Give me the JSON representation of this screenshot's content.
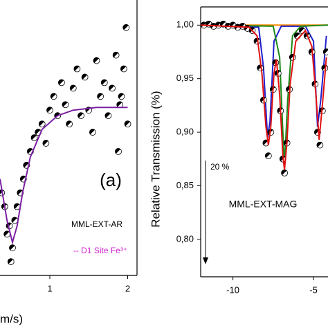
{
  "chart_data": [
    {
      "type": "scatter",
      "x_label": "m/s)",
      "annotations": [
        "(a)",
        "MML-EXT-AR",
        "-- D1 Site Fe³⁺"
      ],
      "xlim": [
        0.36,
        2.12
      ],
      "ylim": [
        0.9,
        1.0
      ],
      "xticks": [
        1,
        2
      ],
      "series": [
        {
          "mode": "markers",
          "color": "#000000",
          "x": [
            0.38,
            0.42,
            0.45,
            0.48,
            0.5,
            0.52,
            0.55,
            0.58,
            0.62,
            0.66,
            0.7,
            0.75,
            0.8,
            0.85,
            0.9,
            0.95,
            1.0,
            1.05,
            1.1,
            1.15,
            1.2,
            1.25,
            1.3,
            1.35,
            1.4,
            1.45,
            1.5,
            1.55,
            1.6,
            1.65,
            1.7,
            1.75,
            1.8,
            1.85,
            1.9,
            1.95,
            2.0,
            1.98,
            1.92,
            1.88
          ],
          "values": [
            0.93,
            0.925,
            0.915,
            0.918,
            0.905,
            0.91,
            0.92,
            0.925,
            0.93,
            0.935,
            0.94,
            0.945,
            0.95,
            0.952,
            0.955,
            0.948,
            0.96,
            0.965,
            0.958,
            0.97,
            0.962,
            0.955,
            0.968,
            0.975,
            0.958,
            0.972,
            0.96,
            0.952,
            0.978,
            0.965,
            0.97,
            0.958,
            0.968,
            0.98,
            0.962,
            0.975,
            0.955,
            0.99,
            0.965,
            0.945
          ]
        },
        {
          "mode": "line",
          "color": "#7b1fa2",
          "x": [
            0.36,
            0.45,
            0.52,
            0.58,
            0.65,
            0.75,
            0.9,
            1.1,
            1.3,
            1.6,
            2.0
          ],
          "values": [
            0.935,
            0.92,
            0.912,
            0.918,
            0.93,
            0.943,
            0.953,
            0.958,
            0.96,
            0.961,
            0.961
          ]
        }
      ]
    },
    {
      "type": "scatter",
      "y_label": "Relative Transmission (%)",
      "annotations": [
        "20 %",
        "MML-EXT-MAG"
      ],
      "xlim": [
        -12,
        -4.1
      ],
      "ylim": [
        0.765,
        1.017
      ],
      "xticks": [
        -10,
        -5
      ],
      "yticks": [
        {
          "value": 1.0,
          "label": "1,00"
        },
        {
          "value": 0.95,
          "label": "0,95"
        },
        {
          "value": 0.9,
          "label": "0,90"
        },
        {
          "value": 0.85,
          "label": "0,85"
        },
        {
          "value": 0.8,
          "label": "0,80"
        }
      ],
      "series": [
        {
          "mode": "line",
          "color": "#ff8c00",
          "x": [
            -12,
            -4.1
          ],
          "values": [
            1.0,
            1.0
          ]
        },
        {
          "mode": "line",
          "color": "#1f1fd0",
          "x": [
            -12,
            -8.4,
            -8.1,
            -7.85,
            -7.7,
            -7.45,
            -7,
            -5.5,
            -5.0,
            -4.75,
            -4.55,
            -4.2
          ],
          "values": [
            1.0,
            0.998,
            0.96,
            0.895,
            0.91,
            0.985,
            0.999,
            0.999,
            0.985,
            0.905,
            0.93,
            0.99
          ]
        },
        {
          "mode": "line",
          "color": "#1a8a1a",
          "x": [
            -12,
            -7.5,
            -7.1,
            -6.9,
            -6.8,
            -6.6,
            -6.3,
            -5.8,
            -4.1
          ],
          "values": [
            1.0,
            0.999,
            0.97,
            0.9,
            0.87,
            0.93,
            0.99,
            0.999,
            1.0
          ]
        },
        {
          "mode": "markers",
          "color": "#000000",
          "x": [
            -11.8,
            -11.5,
            -11.2,
            -10.9,
            -10.6,
            -10.3,
            -10,
            -9.7,
            -9.4,
            -9.1,
            -8.8,
            -8.5,
            -8.3,
            -8.1,
            -7.95,
            -7.8,
            -7.65,
            -7.5,
            -7.35,
            -7.2,
            -7.05,
            -6.9,
            -6.8,
            -6.65,
            -6.5,
            -6.3,
            -6.0,
            -5.7,
            -5.4,
            -5.1,
            -4.9,
            -4.75,
            -4.6,
            -4.45,
            -4.3,
            -4.2
          ],
          "values": [
            1.0,
            1.001,
            0.999,
            1.0,
            1.001,
            0.999,
            1.0,
            0.998,
            0.999,
            0.997,
            0.995,
            0.985,
            0.96,
            0.93,
            0.89,
            0.878,
            0.9,
            0.94,
            0.965,
            0.955,
            0.92,
            0.875,
            0.862,
            0.89,
            0.94,
            0.97,
            0.99,
            0.995,
            0.99,
            0.975,
            0.945,
            0.9,
            0.888,
            0.92,
            0.96,
            0.975
          ]
        },
        {
          "mode": "line",
          "color": "#e01010",
          "x": [
            -12,
            -9,
            -8.5,
            -8.2,
            -7.95,
            -7.8,
            -7.65,
            -7.45,
            -7.3,
            -7.1,
            -6.9,
            -6.8,
            -6.65,
            -6.45,
            -6.1,
            -5.5,
            -5.1,
            -4.85,
            -4.65,
            -4.45,
            -4.2
          ],
          "values": [
            1.0,
            0.998,
            0.99,
            0.955,
            0.905,
            0.888,
            0.905,
            0.955,
            0.968,
            0.935,
            0.878,
            0.865,
            0.89,
            0.945,
            0.985,
            0.995,
            0.98,
            0.935,
            0.893,
            0.925,
            0.97
          ]
        }
      ]
    }
  ]
}
